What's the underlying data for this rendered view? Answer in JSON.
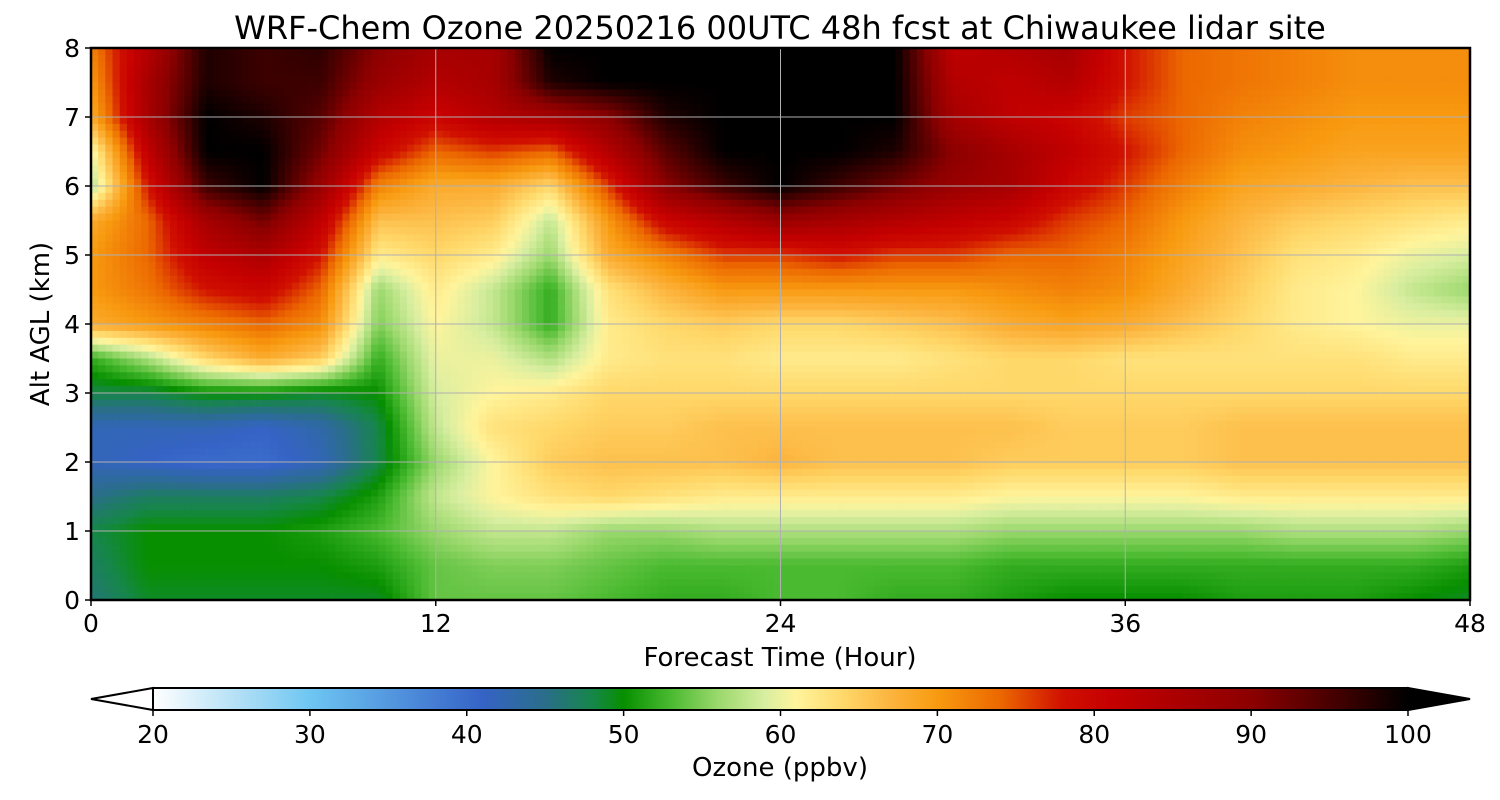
{
  "chart_data": {
    "type": "heatmap",
    "title": "WRF-Chem Ozone  20250216 00UTC 48h fcst at Chiwaukee lidar site",
    "xlabel": "Forecast Time (Hour)",
    "ylabel": "Alt AGL (km)",
    "xlim": [
      0,
      48
    ],
    "ylim": [
      0,
      8
    ],
    "x_ticks": [
      "0",
      "12",
      "24",
      "36",
      "48"
    ],
    "y_ticks": [
      "0",
      "1",
      "2",
      "3",
      "4",
      "5",
      "6",
      "7",
      "8"
    ],
    "grid": true,
    "x": [
      0,
      2,
      4,
      6,
      8,
      10,
      12,
      14,
      16,
      18,
      20,
      22,
      24,
      26,
      28,
      30,
      32,
      34,
      36,
      38,
      40,
      42,
      44,
      46,
      48
    ],
    "y": [
      0,
      0.5,
      1,
      1.5,
      2,
      2.5,
      3,
      3.5,
      4,
      4.5,
      5,
      5.5,
      6,
      6.5,
      7,
      7.5,
      8
    ],
    "z": [
      [
        46,
        49,
        49,
        49,
        49,
        49,
        54,
        54,
        54,
        53,
        52,
        52,
        53,
        53,
        52,
        52,
        51,
        50,
        50,
        50,
        51,
        51,
        51,
        50,
        49
      ],
      [
        47,
        50,
        50,
        50,
        50,
        51,
        54,
        55,
        55,
        54,
        53,
        53,
        53,
        53,
        53,
        53,
        52,
        52,
        52,
        52,
        52,
        52,
        52,
        52,
        51
      ],
      [
        48,
        50,
        50,
        50,
        51,
        53,
        56,
        58,
        58,
        56,
        56,
        57,
        57,
        57,
        57,
        57,
        56,
        56,
        56,
        56,
        56,
        57,
        57,
        57,
        56
      ],
      [
        45,
        47,
        47,
        47,
        48,
        51,
        58,
        61,
        63,
        64,
        63,
        62,
        62,
        62,
        62,
        62,
        61,
        61,
        61,
        61,
        62,
        62,
        62,
        62,
        62
      ],
      [
        42,
        41,
        40,
        40,
        42,
        48,
        56,
        61,
        65,
        66,
        66,
        66,
        67,
        66,
        66,
        66,
        65,
        65,
        65,
        65,
        66,
        66,
        66,
        66,
        66
      ],
      [
        42,
        42,
        42,
        41,
        43,
        48,
        58,
        63,
        64,
        65,
        65,
        66,
        66,
        66,
        66,
        66,
        66,
        65,
        65,
        65,
        66,
        66,
        66,
        66,
        66
      ],
      [
        48,
        48,
        50,
        50,
        49,
        50,
        59,
        61,
        62,
        64,
        64,
        64,
        64,
        64,
        64,
        64,
        64,
        64,
        64,
        64,
        64,
        64,
        64,
        64,
        64
      ],
      [
        52,
        57,
        64,
        68,
        65,
        52,
        60,
        60,
        57,
        62,
        63,
        63,
        62,
        62,
        62,
        63,
        64,
        64,
        63,
        63,
        63,
        63,
        63,
        62,
        62
      ],
      [
        68,
        70,
        72,
        74,
        71,
        55,
        61,
        58,
        52,
        62,
        64,
        65,
        64,
        64,
        65,
        66,
        68,
        69,
        68,
        66,
        64,
        62,
        61,
        60,
        60
      ],
      [
        70,
        73,
        78,
        80,
        74,
        56,
        62,
        58,
        52,
        63,
        67,
        70,
        70,
        70,
        70,
        70,
        71,
        72,
        71,
        68,
        65,
        62,
        61,
        58,
        56
      ],
      [
        70,
        74,
        82,
        85,
        78,
        62,
        64,
        62,
        56,
        68,
        72,
        76,
        76,
        78,
        76,
        76,
        74,
        74,
        72,
        69,
        66,
        63,
        62,
        60,
        59
      ],
      [
        68,
        74,
        86,
        92,
        82,
        66,
        66,
        65,
        58,
        70,
        80,
        84,
        88,
        86,
        84,
        82,
        80,
        76,
        74,
        70,
        67,
        65,
        64,
        63,
        62
      ],
      [
        57,
        78,
        96,
        100,
        88,
        72,
        68,
        68,
        64,
        76,
        90,
        96,
        100,
        96,
        92,
        88,
        86,
        80,
        76,
        72,
        69,
        68,
        67,
        66,
        66
      ],
      [
        60,
        82,
        100,
        100,
        92,
        80,
        74,
        76,
        74,
        84,
        94,
        100,
        100,
        100,
        98,
        90,
        86,
        82,
        78,
        74,
        71,
        70,
        69,
        69,
        69
      ],
      [
        68,
        86,
        100,
        98,
        94,
        84,
        80,
        84,
        86,
        90,
        98,
        100,
        100,
        100,
        100,
        86,
        82,
        80,
        76,
        74,
        72,
        71,
        70,
        70,
        70
      ],
      [
        70,
        86,
        98,
        96,
        96,
        88,
        84,
        86,
        98,
        100,
        100,
        100,
        100,
        100,
        100,
        84,
        82,
        84,
        78,
        74,
        73,
        72,
        71,
        71,
        71
      ],
      [
        72,
        84,
        98,
        96,
        97,
        90,
        86,
        86,
        100,
        100,
        100,
        100,
        100,
        100,
        100,
        82,
        84,
        86,
        78,
        74,
        73,
        72,
        71,
        71,
        71
      ]
    ],
    "colorbar": {
      "label": "Ozone  (ppbv)",
      "min": 20,
      "max": 100,
      "ticks": [
        "20",
        "30",
        "40",
        "50",
        "60",
        "70",
        "80",
        "90",
        "100"
      ],
      "extend": "both",
      "stops": [
        {
          "v": 20,
          "c": "#ffffff"
        },
        {
          "v": 26,
          "c": "#aadcf5"
        },
        {
          "v": 30,
          "c": "#6ec6f2"
        },
        {
          "v": 36,
          "c": "#4f8fdc"
        },
        {
          "v": 41,
          "c": "#3563c6"
        },
        {
          "v": 45,
          "c": "#2a6e8a"
        },
        {
          "v": 48,
          "c": "#16864a"
        },
        {
          "v": 50,
          "c": "#078f00"
        },
        {
          "v": 53,
          "c": "#4aba30"
        },
        {
          "v": 56,
          "c": "#9ad86c"
        },
        {
          "v": 59,
          "c": "#d8eea0"
        },
        {
          "v": 61,
          "c": "#fff49c"
        },
        {
          "v": 64,
          "c": "#ffd86a"
        },
        {
          "v": 67,
          "c": "#fcb43e"
        },
        {
          "v": 70,
          "c": "#f89a10"
        },
        {
          "v": 74,
          "c": "#ec6800"
        },
        {
          "v": 78,
          "c": "#d01000"
        },
        {
          "v": 81,
          "c": "#c60000"
        },
        {
          "v": 90,
          "c": "#8c0000"
        },
        {
          "v": 96,
          "c": "#3c0000"
        },
        {
          "v": 100,
          "c": "#000000"
        }
      ]
    }
  }
}
